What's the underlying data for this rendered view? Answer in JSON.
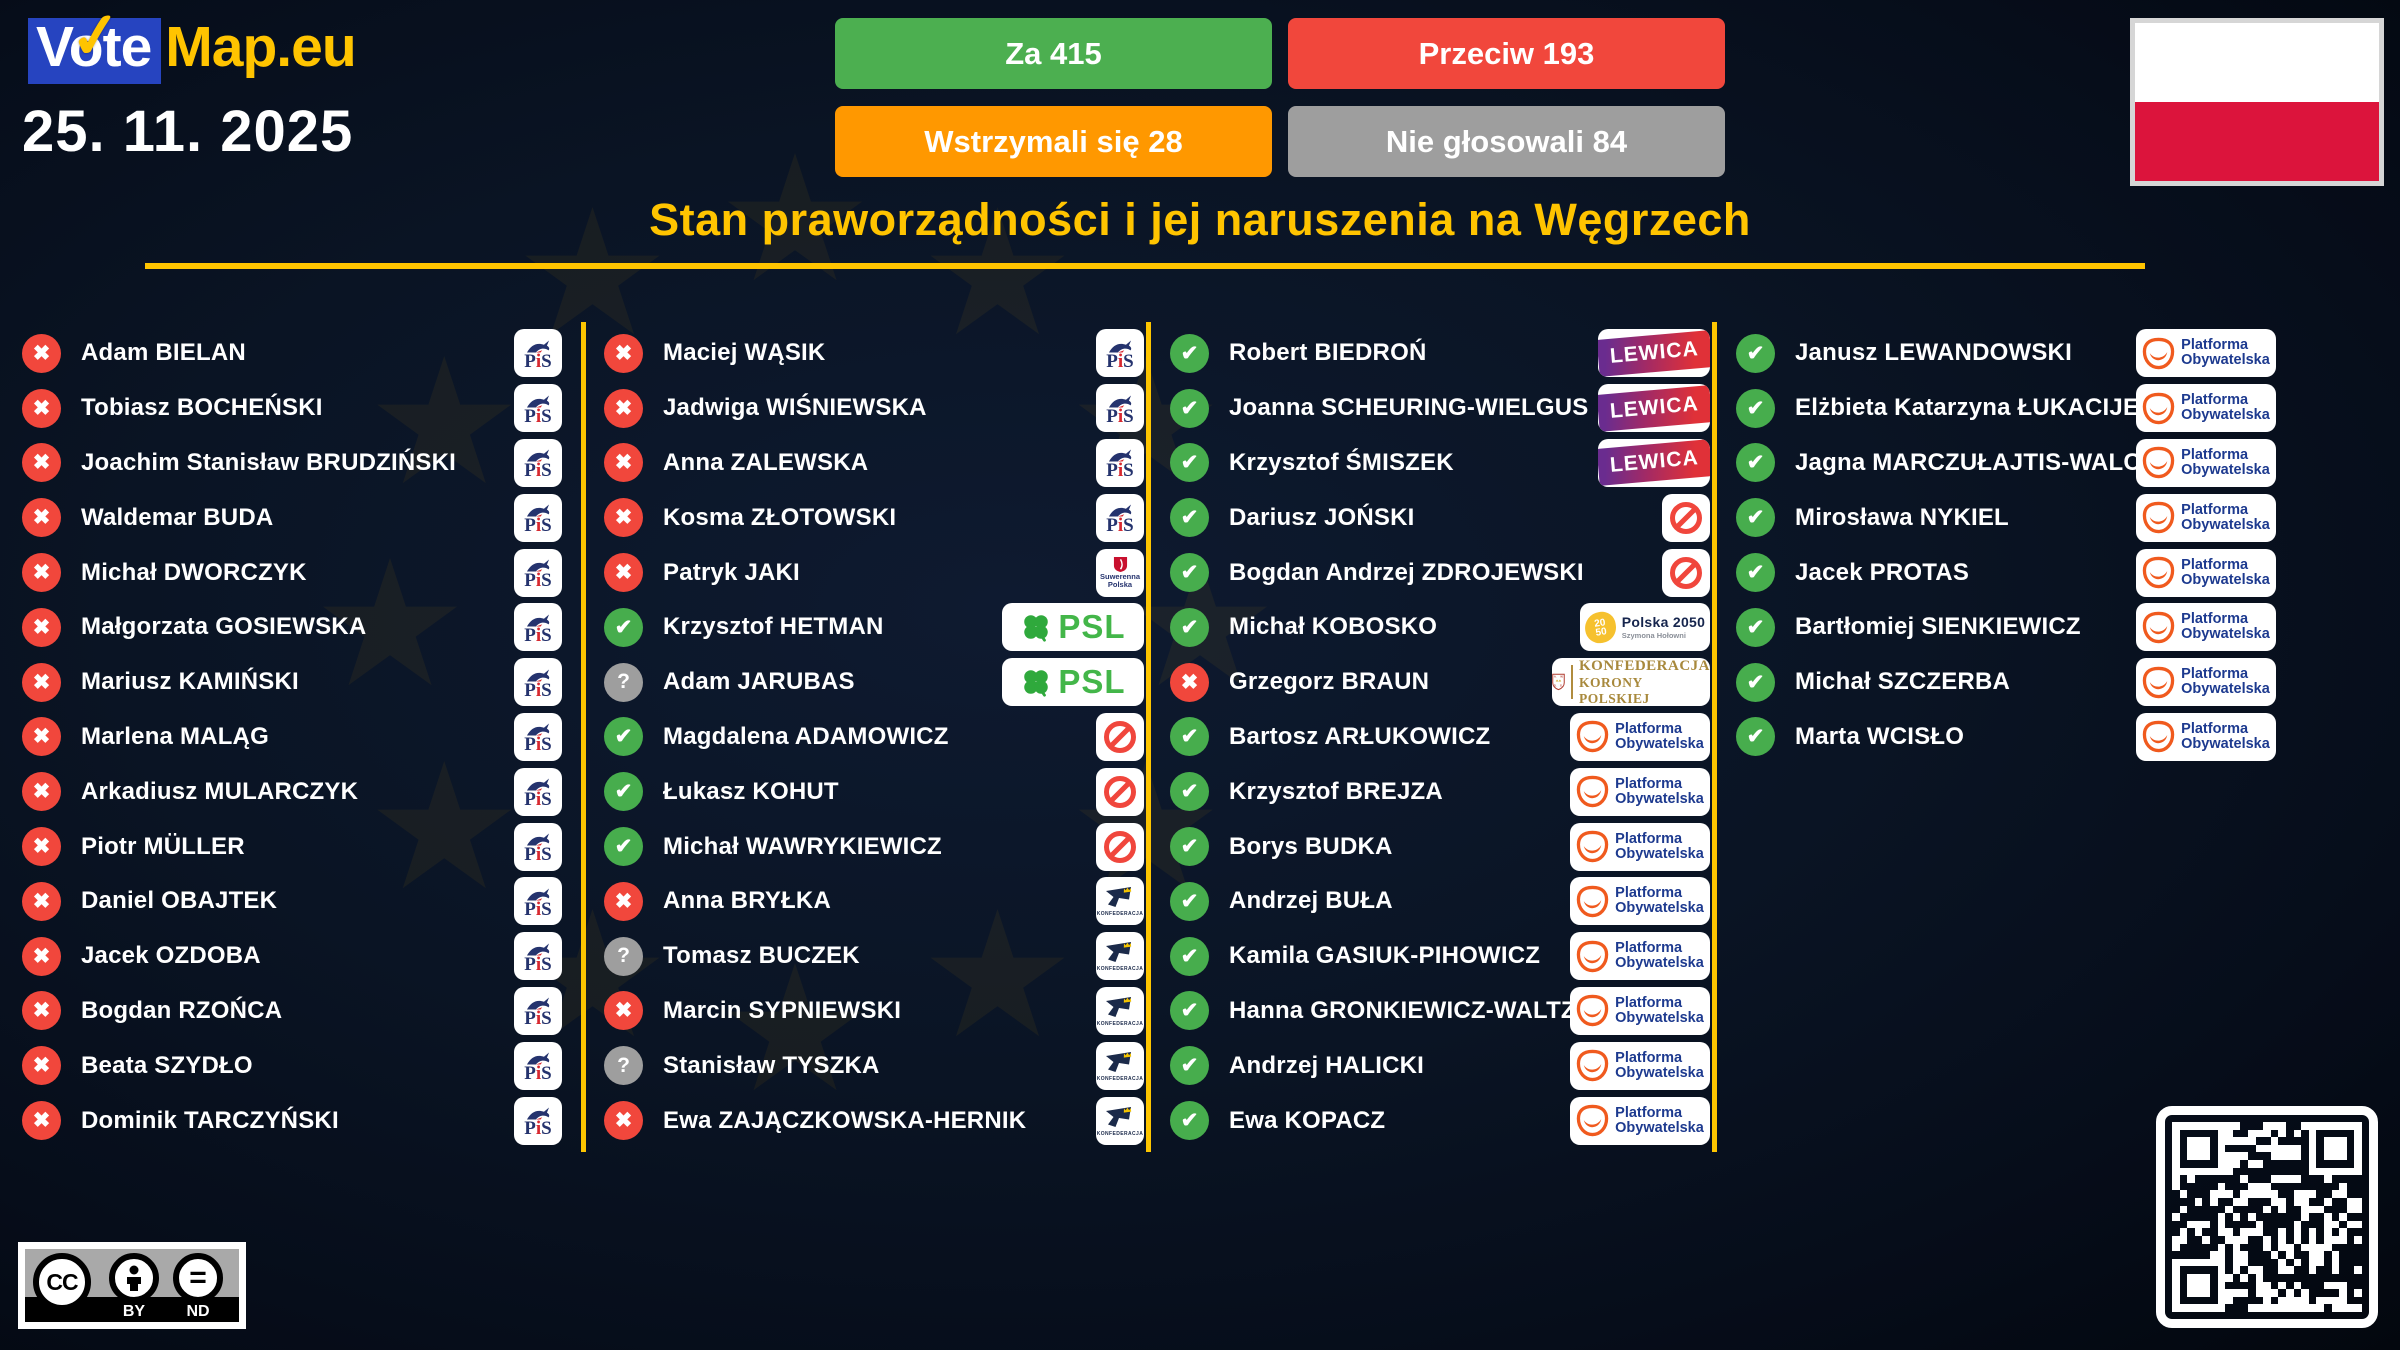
{
  "header": {
    "brand": {
      "vote": "Vote",
      "map": "Map.eu",
      "check_icon": "✓",
      "box_color": "#2644c0",
      "accent_color": "#ffc400"
    },
    "date": "25. 11. 2025",
    "summary_buttons": [
      {
        "id": "za",
        "label": "Za 415",
        "color": "#4caf50"
      },
      {
        "id": "przeciw",
        "label": "Przeciw 193",
        "color": "#f1473c"
      },
      {
        "id": "wstrzymali",
        "label": "Wstrzymali się 28",
        "color": "#ff9800"
      },
      {
        "id": "nie-glosowali",
        "label": "Nie głosowali 84",
        "color": "#9e9e9e"
      }
    ]
  },
  "flag": {
    "country": "Poland",
    "top_color": "#ffffff",
    "bottom_color": "#dc143c"
  },
  "title": "Stan praworządności i jej naruszenia na Węgrzech",
  "vote_icons": {
    "for": "✔",
    "against": "✖",
    "abstain": "?"
  },
  "vote_colors": {
    "for": "#47ad4d",
    "against": "#f1473c",
    "abstain": "#9e9e9e"
  },
  "parties": {
    "pis": {
      "name": "PiS",
      "text_p": "P",
      "text_i": "i",
      "text_s": "S"
    },
    "sp": {
      "name": "Suwerenna Polska",
      "line1": "Suwerenna",
      "line2": "Polska"
    },
    "psl": {
      "name": "PSL",
      "text": "PSL"
    },
    "ni": {
      "name": "Niezrzeszeni"
    },
    "konf": {
      "name": "Konfederacja",
      "text": "KONFEDERACJA"
    },
    "lewica": {
      "name": "Lewica",
      "text": "LEWICA"
    },
    "p2050": {
      "name": "Polska 2050",
      "line1": "Polska 2050",
      "line2": "Szymona Hołowni"
    },
    "kkp": {
      "name": "Konfederacja Korony Polskiej",
      "line1": "KONFEDERACJA",
      "line2": "KORONY POLSKIEJ"
    },
    "po": {
      "name": "Platforma Obywatelska",
      "line1": "Platforma",
      "line2": "Obywatelska"
    }
  },
  "columns": [
    [
      {
        "name": "Adam BIELAN",
        "vote": "against",
        "party": "pis"
      },
      {
        "name": "Tobiasz BOCHEŃSKI",
        "vote": "against",
        "party": "pis"
      },
      {
        "name": "Joachim Stanisław BRUDZIŃSKI",
        "vote": "against",
        "party": "pis"
      },
      {
        "name": "Waldemar BUDA",
        "vote": "against",
        "party": "pis"
      },
      {
        "name": "Michał DWORCZYK",
        "vote": "against",
        "party": "pis"
      },
      {
        "name": "Małgorzata GOSIEWSKA",
        "vote": "against",
        "party": "pis"
      },
      {
        "name": "Mariusz KAMIŃSKI",
        "vote": "against",
        "party": "pis"
      },
      {
        "name": "Marlena MALĄG",
        "vote": "against",
        "party": "pis"
      },
      {
        "name": "Arkadiusz MULARCZYK",
        "vote": "against",
        "party": "pis"
      },
      {
        "name": "Piotr MÜLLER",
        "vote": "against",
        "party": "pis"
      },
      {
        "name": "Daniel OBAJTEK",
        "vote": "against",
        "party": "pis"
      },
      {
        "name": "Jacek OZDOBA",
        "vote": "against",
        "party": "pis"
      },
      {
        "name": "Bogdan RZOŃCA",
        "vote": "against",
        "party": "pis"
      },
      {
        "name": "Beata SZYDŁO",
        "vote": "against",
        "party": "pis"
      },
      {
        "name": "Dominik TARCZYŃSKI",
        "vote": "against",
        "party": "pis"
      }
    ],
    [
      {
        "name": "Maciej WĄSIK",
        "vote": "against",
        "party": "pis"
      },
      {
        "name": "Jadwiga WIŚNIEWSKA",
        "vote": "against",
        "party": "pis"
      },
      {
        "name": "Anna ZALEWSKA",
        "vote": "against",
        "party": "pis"
      },
      {
        "name": "Kosma ZŁOTOWSKI",
        "vote": "against",
        "party": "pis"
      },
      {
        "name": "Patryk JAKI",
        "vote": "against",
        "party": "sp"
      },
      {
        "name": "Krzysztof HETMAN",
        "vote": "for",
        "party": "psl"
      },
      {
        "name": "Adam JARUBAS",
        "vote": "abstain",
        "party": "psl"
      },
      {
        "name": "Magdalena ADAMOWICZ",
        "vote": "for",
        "party": "ni"
      },
      {
        "name": "Łukasz KOHUT",
        "vote": "for",
        "party": "ni"
      },
      {
        "name": "Michał WAWRYKIEWICZ",
        "vote": "for",
        "party": "ni"
      },
      {
        "name": "Anna BRYŁKA",
        "vote": "against",
        "party": "konf"
      },
      {
        "name": "Tomasz BUCZEK",
        "vote": "abstain",
        "party": "konf"
      },
      {
        "name": "Marcin SYPNIEWSKI",
        "vote": "against",
        "party": "konf"
      },
      {
        "name": "Stanisław TYSZKA",
        "vote": "abstain",
        "party": "konf"
      },
      {
        "name": "Ewa ZAJĄCZKOWSKA-HERNIK",
        "vote": "against",
        "party": "konf"
      }
    ],
    [
      {
        "name": "Robert BIEDROŃ",
        "vote": "for",
        "party": "lewica"
      },
      {
        "name": "Joanna SCHEURING-WIELGUS",
        "vote": "for",
        "party": "lewica"
      },
      {
        "name": "Krzysztof ŚMISZEK",
        "vote": "for",
        "party": "lewica"
      },
      {
        "name": "Dariusz JOŃSKI",
        "vote": "for",
        "party": "ni"
      },
      {
        "name": "Bogdan Andrzej ZDROJEWSKI",
        "vote": "for",
        "party": "ni"
      },
      {
        "name": "Michał KOBOSKO",
        "vote": "for",
        "party": "p2050"
      },
      {
        "name": "Grzegorz BRAUN",
        "vote": "against",
        "party": "kkp"
      },
      {
        "name": "Bartosz ARŁUKOWICZ",
        "vote": "for",
        "party": "po"
      },
      {
        "name": "Krzysztof BREJZA",
        "vote": "for",
        "party": "po"
      },
      {
        "name": "Borys BUDKA",
        "vote": "for",
        "party": "po"
      },
      {
        "name": "Andrzej BUŁA",
        "vote": "for",
        "party": "po"
      },
      {
        "name": "Kamila GASIUK-PIHOWICZ",
        "vote": "for",
        "party": "po"
      },
      {
        "name": "Hanna GRONKIEWICZ-WALTZ",
        "vote": "for",
        "party": "po"
      },
      {
        "name": "Andrzej HALICKI",
        "vote": "for",
        "party": "po"
      },
      {
        "name": "Ewa KOPACZ",
        "vote": "for",
        "party": "po"
      }
    ],
    [
      {
        "name": "Janusz LEWANDOWSKI",
        "vote": "for",
        "party": "po"
      },
      {
        "name": "Elżbieta Katarzyna ŁUKACIJEWSKA",
        "vote": "for",
        "party": "po"
      },
      {
        "name": "Jagna MARCZUŁAJTIS-WALCZAK",
        "vote": "for",
        "party": "po"
      },
      {
        "name": "Mirosława NYKIEL",
        "vote": "for",
        "party": "po"
      },
      {
        "name": "Jacek PROTAS",
        "vote": "for",
        "party": "po"
      },
      {
        "name": "Bartłomiej SIENKIEWICZ",
        "vote": "for",
        "party": "po"
      },
      {
        "name": "Michał SZCZERBA",
        "vote": "for",
        "party": "po"
      },
      {
        "name": "Marta WCISŁO",
        "vote": "for",
        "party": "po"
      }
    ]
  ],
  "footer": {
    "license": {
      "cc": "CC",
      "by": "BY",
      "nd": "ND"
    }
  }
}
